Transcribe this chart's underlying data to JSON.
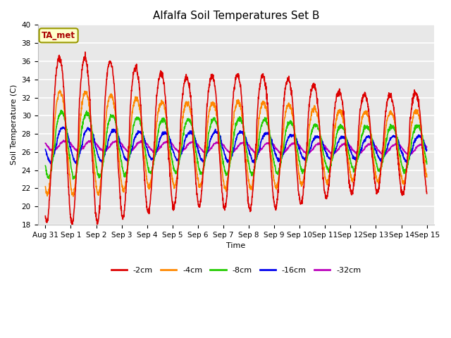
{
  "title": "Alfalfa Soil Temperatures Set B",
  "xlabel": "Time",
  "ylabel": "Soil Temperature (C)",
  "ylim": [
    18,
    40
  ],
  "xlim_days": [
    -0.3,
    15.3
  ],
  "fig_color": "#ffffff",
  "bg_color": "#e8e8e8",
  "grid_color": "white",
  "ta_met_label": "TA_met",
  "series": {
    "-2cm": {
      "color": "#dd0000",
      "lw": 1.2
    },
    "-4cm": {
      "color": "#ff8800",
      "lw": 1.2
    },
    "-8cm": {
      "color": "#22cc00",
      "lw": 1.2
    },
    "-16cm": {
      "color": "#0000ee",
      "lw": 1.2
    },
    "-32cm": {
      "color": "#bb00bb",
      "lw": 1.2
    }
  },
  "tick_labels": [
    "Aug 31",
    "Sep 1",
    "Sep 2",
    "Sep 3",
    "Sep 4",
    "Sep 5",
    "Sep 6",
    "Sep 7",
    "Sep 8",
    "Sep 9",
    "Sep 10",
    "Sep 11",
    "Sep 12",
    "Sep 13",
    "Sep 14",
    "Sep 15"
  ],
  "yticks": [
    18,
    20,
    22,
    24,
    26,
    28,
    30,
    32,
    34,
    36,
    38,
    40
  ],
  "title_fontsize": 11,
  "label_fontsize": 8,
  "tick_fontsize": 7.5,
  "legend_fontsize": 8
}
